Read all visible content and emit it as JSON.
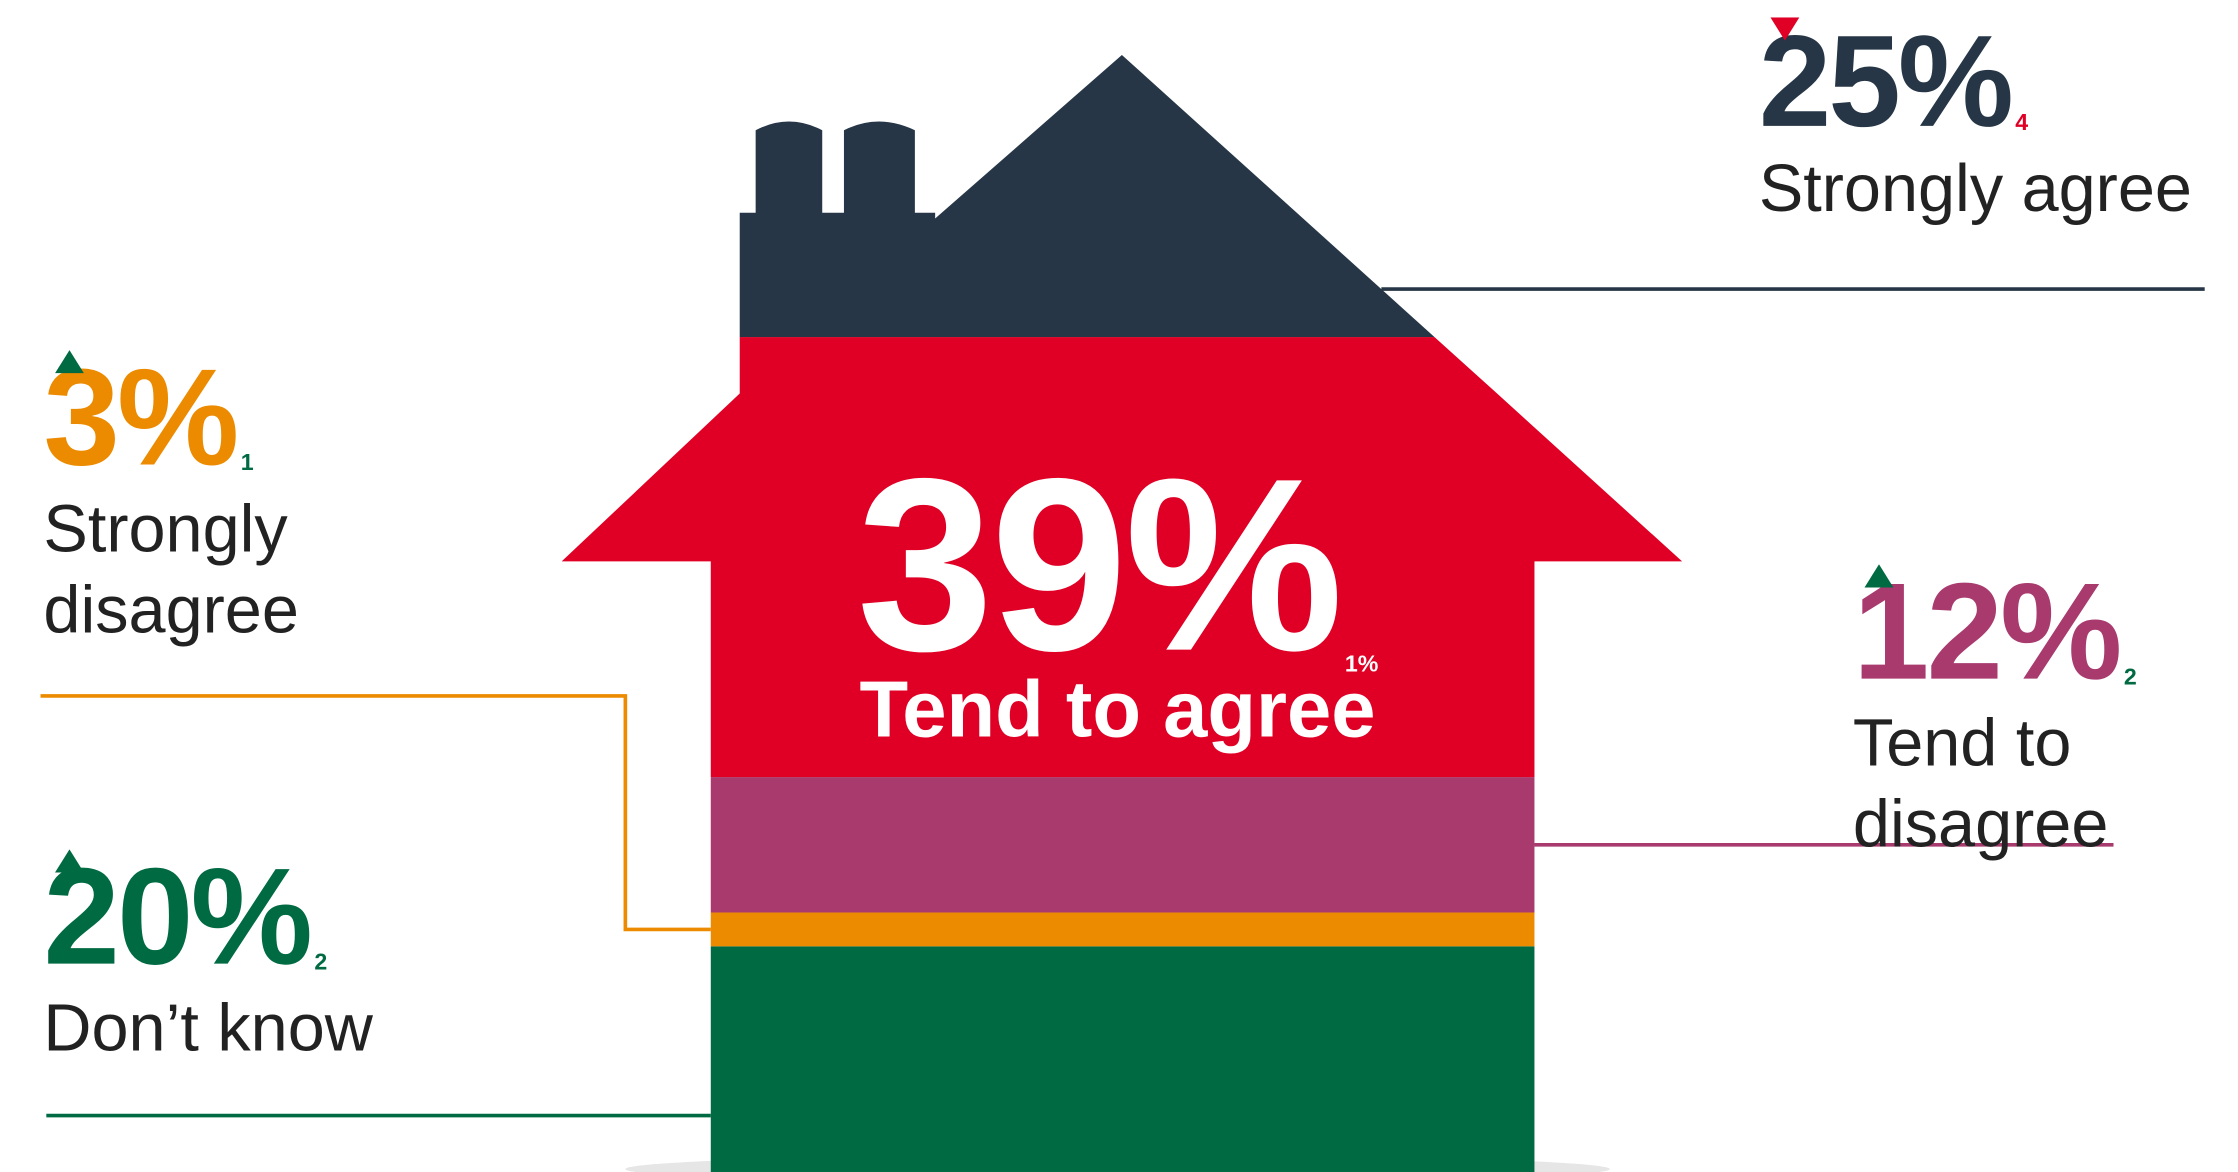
{
  "chart_data": {
    "type": "house",
    "categories": [
      "Don’t know",
      "Strongly disagree",
      "Tend to disagree",
      "Tend to agree",
      "Strongly agree"
    ],
    "values": [
      20,
      3,
      12,
      39,
      25
    ],
    "value_labels": [
      "20%",
      "3%",
      "12%",
      "39%",
      "25%"
    ],
    "colors": [
      "#006a43",
      "#ec8a00",
      "#a83a6e",
      "#e00025",
      "#263646"
    ],
    "label_colors": [
      "#006a43",
      "#ec8a00",
      "#a83a6e",
      "#ffffff",
      "#263646"
    ],
    "changes": [
      2,
      1,
      2,
      -1,
      -4
    ],
    "change_labels": [
      "2",
      "1",
      "2",
      "1%",
      "4"
    ],
    "change_colors": [
      "#006a43",
      "#006a43",
      "#006a43",
      "#ffffff",
      "#e00025"
    ]
  }
}
